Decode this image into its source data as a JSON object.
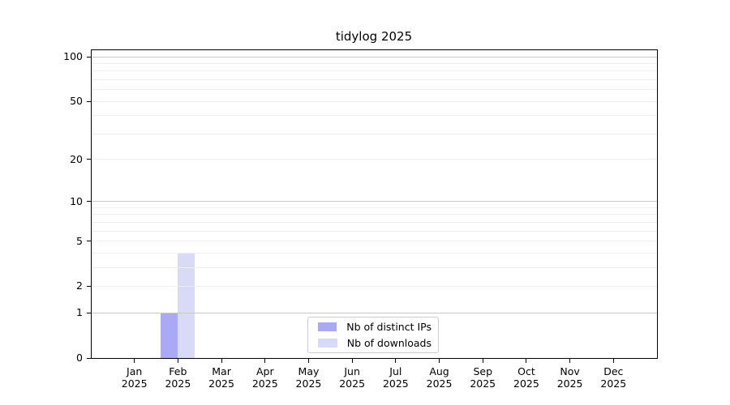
{
  "chart_data": {
    "type": "bar",
    "title": "tidylog 2025",
    "categories": [
      "Jan 2025",
      "Feb 2025",
      "Mar 2025",
      "Apr 2025",
      "May 2025",
      "Jun 2025",
      "Jul 2025",
      "Aug 2025",
      "Sep 2025",
      "Oct 2025",
      "Nov 2025",
      "Dec 2025"
    ],
    "series": [
      {
        "name": "Nb of distinct IPs",
        "color": "#a9a9f5",
        "values": [
          0,
          1,
          0,
          0,
          0,
          0,
          0,
          0,
          0,
          0,
          0,
          0
        ]
      },
      {
        "name": "Nb of downloads",
        "color": "#d9d9f8",
        "values": [
          0,
          4,
          0,
          0,
          0,
          0,
          0,
          0,
          0,
          0,
          0,
          0
        ]
      }
    ],
    "xlabel": "",
    "ylabel": "",
    "yaxis": {
      "scale": "log1p",
      "tick_labels": [
        0,
        1,
        2,
        5,
        10,
        20,
        50,
        100
      ],
      "gridlines_major": [
        1,
        10,
        100
      ],
      "gridlines_minor": [
        2,
        3,
        4,
        5,
        6,
        7,
        8,
        9,
        20,
        30,
        40,
        50,
        60,
        70,
        80,
        90
      ],
      "ymin": 0,
      "ymax_top_of_frame": 112
    },
    "grid": true,
    "legend_position": "bottom-center-inside"
  },
  "colors": {
    "background": "#ffffff",
    "axis_frame": "#000000",
    "gridline_major": "#c8c8c8",
    "gridline_minor": "#eeeeee",
    "legend_border": "#cccccc",
    "text": "#000000"
  }
}
